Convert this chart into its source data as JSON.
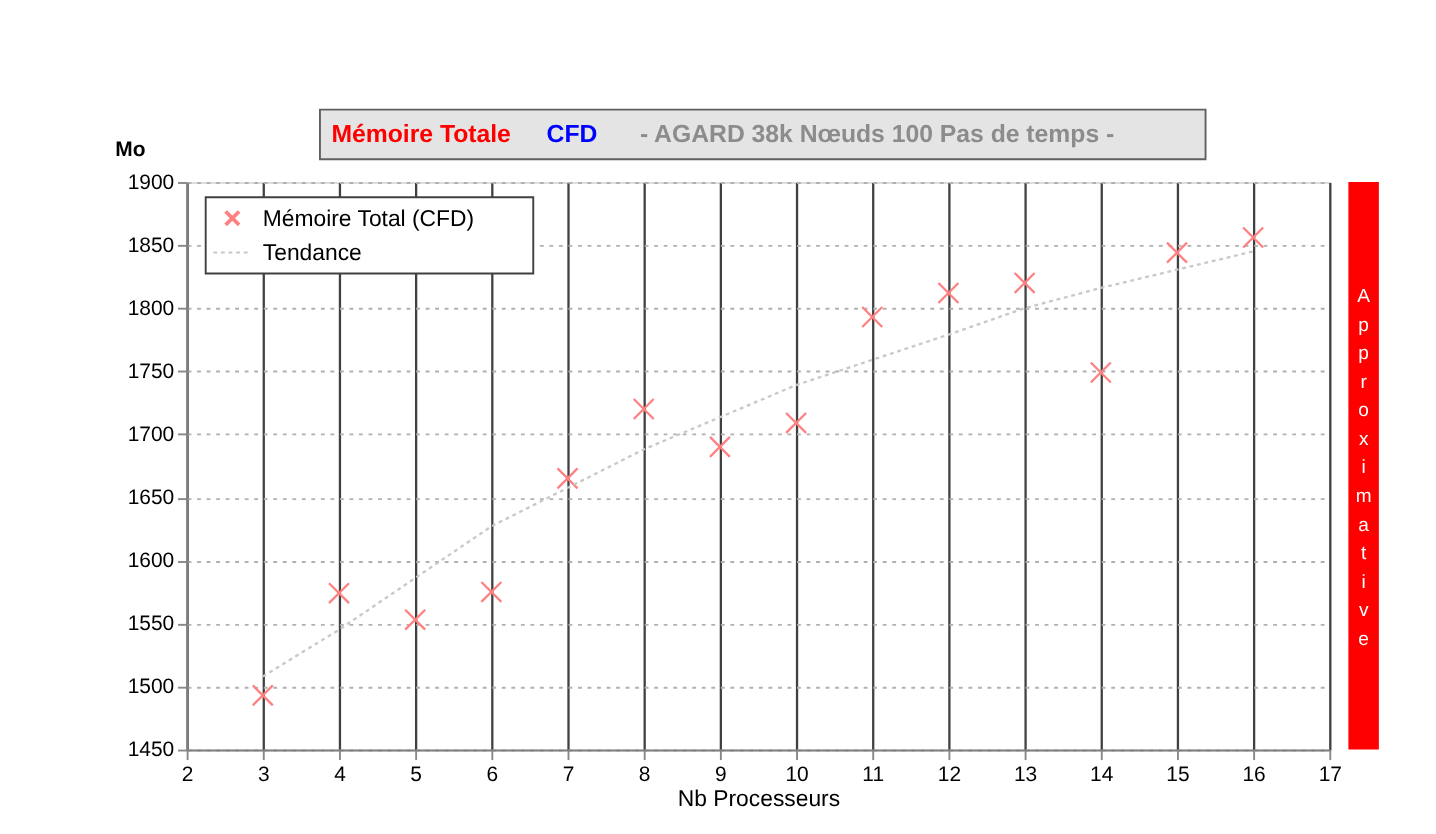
{
  "chart_data": {
    "type": "scatter",
    "title": "Mémoire Totale",
    "subtitle": "CFD",
    "annotations": [
      "- AGARD 38k Nœuds 100 Pas de temps -",
      "Approximative"
    ],
    "xlabel": "Nb Processeurs",
    "ylabel": "Mo",
    "x": [
      3,
      4,
      5,
      6,
      7,
      8,
      9,
      10,
      11,
      12,
      13,
      14,
      15,
      16
    ],
    "series": [
      {
        "name": "Mémoire Total  (CFD)",
        "color": "#ff8080",
        "marker": "cross",
        "values": [
          1493,
          1574,
          1553,
          1575,
          1665,
          1720,
          1690,
          1709,
          1793,
          1812,
          1820,
          1749,
          1844,
          1856
        ]
      },
      {
        "name": "Tendance",
        "type": "line",
        "color": "#c8c8c8",
        "line_style": "dotted",
        "marker": "none",
        "x": [
          3,
          4,
          6,
          8,
          10,
          12,
          13,
          14,
          16
        ],
        "values": [
          1508,
          1545,
          1627,
          1688,
          1739,
          1779,
          1800,
          1816,
          1845
        ]
      }
    ],
    "xlim": [
      2,
      17
    ],
    "xticks": [
      2,
      3,
      4,
      5,
      6,
      7,
      8,
      9,
      10,
      11,
      12,
      13,
      14,
      15,
      16,
      17
    ],
    "ylim": [
      1450,
      1900
    ],
    "yticks": [
      1450,
      1500,
      1550,
      1600,
      1650,
      1700,
      1750,
      1800,
      1850,
      1900
    ],
    "grid": true,
    "legend": "top left"
  }
}
